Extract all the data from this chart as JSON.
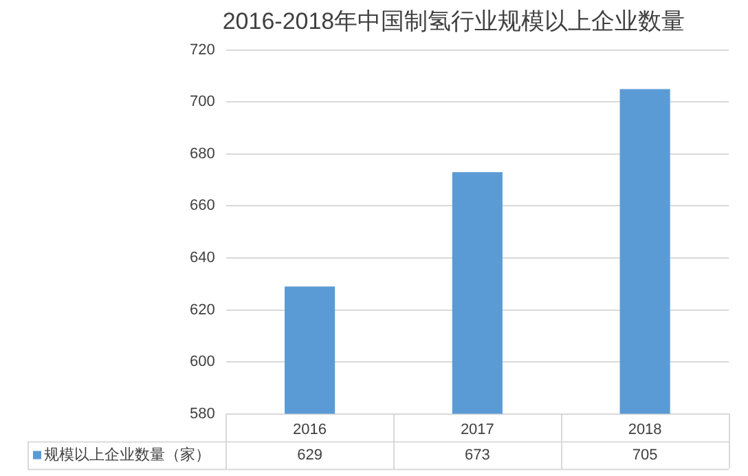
{
  "chart_data": {
    "type": "bar",
    "title": "2016-2018年中国制氢行业规模以上企业数量",
    "categories": [
      "2016",
      "2017",
      "2018"
    ],
    "series": [
      {
        "name": "规模以上企业数量（家）",
        "color": "#5b9bd5",
        "values": [
          629,
          673,
          705
        ]
      }
    ],
    "ylim": [
      580,
      720
    ],
    "yticks": [
      580,
      600,
      620,
      640,
      660,
      680,
      700,
      720
    ],
    "grid": "y",
    "legend": "bottom",
    "data_labels": true
  }
}
